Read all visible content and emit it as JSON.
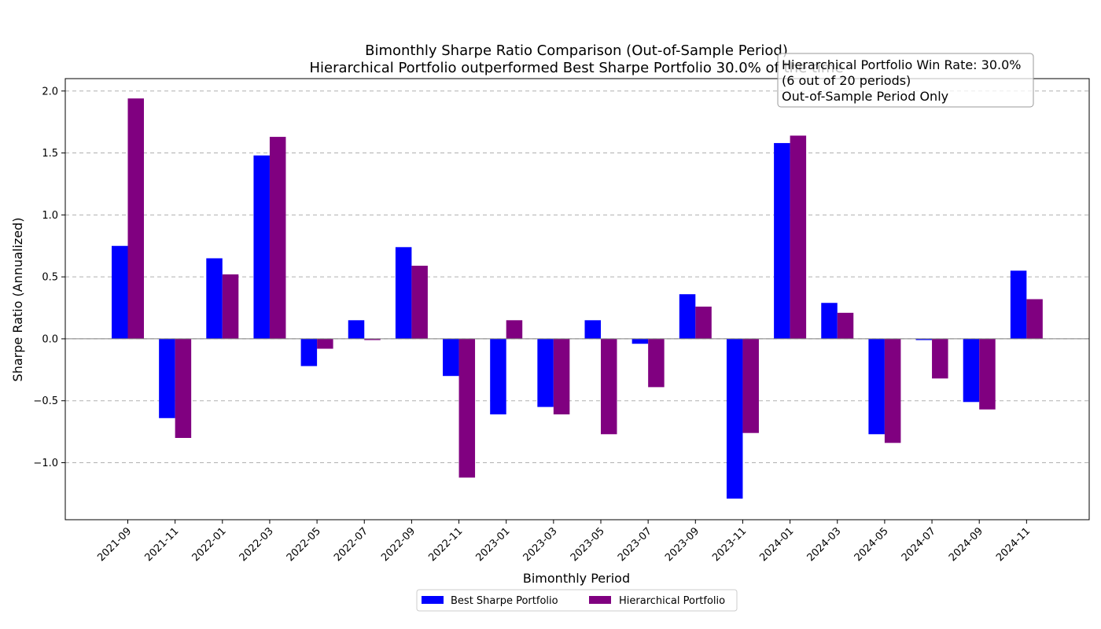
{
  "chart_data": {
    "type": "bar",
    "title": "Bimonthly Sharpe Ratio Comparison (Out-of-Sample Period)",
    "subtitle": "Hierarchical Portfolio outperformed Best Sharpe Portfolio 30.0% of the time",
    "xlabel": "Bimonthly Period",
    "ylabel": "Sharpe Ratio (Annualized)",
    "ylim": [
      -1.46,
      2.1
    ],
    "yticks": [
      -1.0,
      -0.5,
      0.0,
      0.5,
      1.0,
      1.5,
      2.0
    ],
    "ytick_labels": [
      "−1.0",
      "−0.5",
      "0.0",
      "0.5",
      "1.0",
      "1.5",
      "2.0"
    ],
    "grid": "horizontal dashed",
    "legend_position": "bottom-center",
    "categories": [
      "2021-09",
      "2021-11",
      "2022-01",
      "2022-03",
      "2022-05",
      "2022-07",
      "2022-09",
      "2022-11",
      "2023-01",
      "2023-03",
      "2023-05",
      "2023-07",
      "2023-09",
      "2023-11",
      "2024-01",
      "2024-03",
      "2024-05",
      "2024-07",
      "2024-09",
      "2024-11"
    ],
    "series": [
      {
        "name": "Best Sharpe Portfolio",
        "color": "#0000ff",
        "values": [
          0.75,
          -0.64,
          0.65,
          1.48,
          -0.22,
          0.15,
          0.74,
          -0.3,
          -0.61,
          -0.55,
          0.15,
          -0.04,
          0.36,
          -1.29,
          1.58,
          0.29,
          -0.77,
          -0.01,
          -0.51,
          0.55
        ]
      },
      {
        "name": "Hierarchical Portfolio",
        "color": "#800080",
        "values": [
          1.94,
          -0.8,
          0.52,
          1.63,
          -0.08,
          -0.01,
          0.59,
          -1.12,
          0.15,
          -0.61,
          -0.77,
          -0.39,
          0.26,
          -0.76,
          1.64,
          0.21,
          -0.84,
          -0.32,
          -0.57,
          0.32
        ]
      }
    ],
    "annotation": {
      "lines": [
        "Hierarchical Portfolio Win Rate: 30.0%",
        "(6 out of 20 periods)",
        "Out-of-Sample Period Only"
      ]
    }
  }
}
